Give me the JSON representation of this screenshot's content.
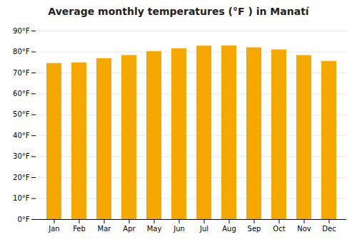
{
  "chart_data": {
    "type": "bar",
    "title": "Average monthly temperatures (°F ) in Manatí",
    "categories": [
      "Jan",
      "Feb",
      "Mar",
      "Apr",
      "May",
      "Jun",
      "Jul",
      "Aug",
      "Sep",
      "Oct",
      "Nov",
      "Dec"
    ],
    "values": [
      74.5,
      74.8,
      76.8,
      78.3,
      80.2,
      81.5,
      82.8,
      82.9,
      82.0,
      81.0,
      78.3,
      75.5
    ],
    "color": "#F5A800",
    "ylim": [
      0,
      90
    ],
    "yticks": [
      {
        "value": 0,
        "label": "0°F"
      },
      {
        "value": 10,
        "label": "10°F"
      },
      {
        "value": 20,
        "label": "20°F"
      },
      {
        "value": 30,
        "label": "30°F"
      },
      {
        "value": 40,
        "label": "40°F"
      },
      {
        "value": 50,
        "label": "50°F"
      },
      {
        "value": 60,
        "label": "60°F"
      },
      {
        "value": 70,
        "label": "70°F"
      },
      {
        "value": 80,
        "label": "80°F"
      },
      {
        "value": 90,
        "label": "90°F"
      }
    ],
    "grid": true
  }
}
